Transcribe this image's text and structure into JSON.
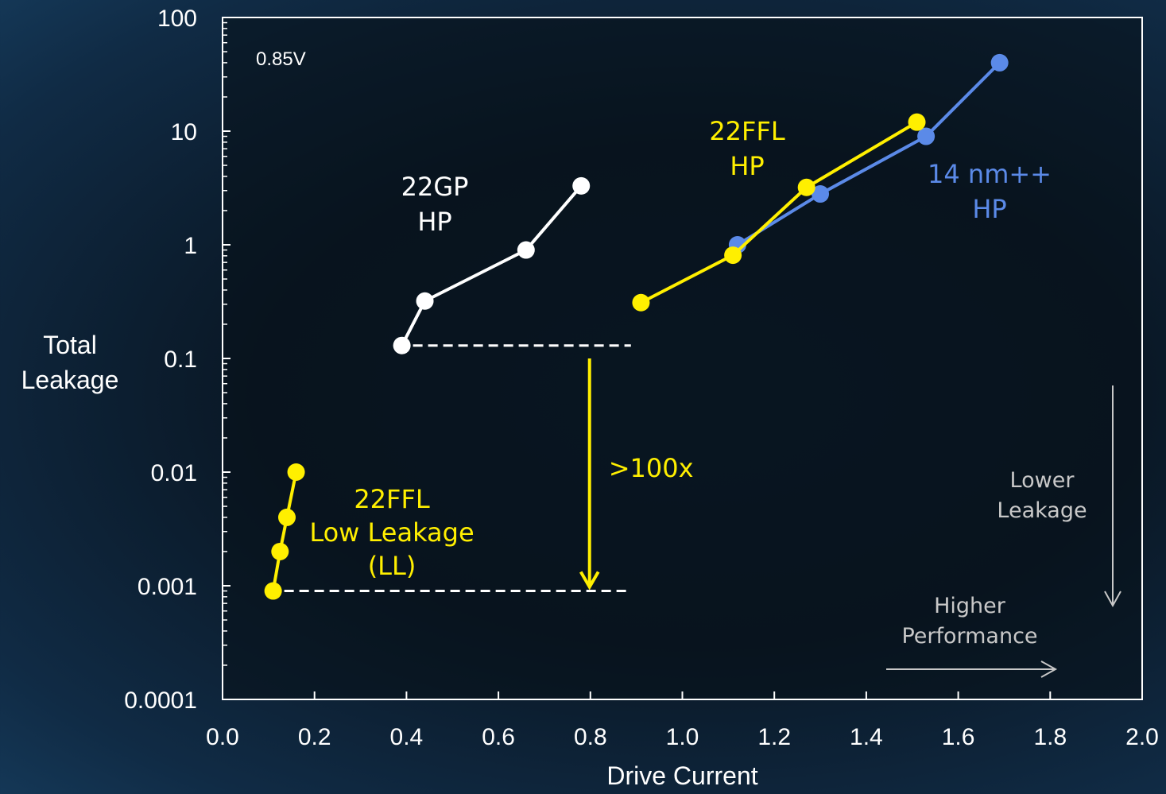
{
  "chart_data": {
    "type": "line",
    "xlabel": "Drive Current",
    "ylabel_lines": [
      "Total",
      "Leakage"
    ],
    "x_scale": "linear",
    "y_scale": "log",
    "xlim": [
      0.0,
      2.0
    ],
    "ylim": [
      0.0001,
      100
    ],
    "x_ticks": [
      "0.0",
      "0.2",
      "0.4",
      "0.6",
      "0.8",
      "1.0",
      "1.2",
      "1.4",
      "1.6",
      "1.8",
      "2.0"
    ],
    "y_ticks": [
      "100",
      "10",
      "1",
      "0.1",
      "0.01",
      "0.001",
      "0.0001"
    ],
    "grid": false,
    "legend": "none",
    "series": [
      {
        "name_lines": [
          "22GP",
          "HP"
        ],
        "color": "#ffffff",
        "x": [
          0.39,
          0.44,
          0.66,
          0.78
        ],
        "y": [
          0.13,
          0.32,
          0.9,
          3.3
        ]
      },
      {
        "name_lines": [
          "14 nm++",
          "HP"
        ],
        "color": "#5b8ae8",
        "x": [
          1.12,
          1.3,
          1.53,
          1.69
        ],
        "y": [
          1.0,
          2.8,
          9.0,
          40
        ]
      },
      {
        "name_lines": [
          "22FFL",
          "HP"
        ],
        "color": "#ffef00",
        "x": [
          0.91,
          1.11,
          1.27,
          1.51
        ],
        "y": [
          0.31,
          0.81,
          3.2,
          12
        ]
      },
      {
        "name_lines": [
          "22FFL",
          "Low Leakage",
          "(LL)"
        ],
        "color": "#ffef00",
        "x": [
          0.11,
          0.125,
          0.14,
          0.16
        ],
        "y": [
          0.0009,
          0.002,
          0.004,
          0.01
        ]
      }
    ],
    "annotations": {
      "voltage": "0.85V",
      "improvement": ">100x",
      "improvement_color": "#ffef00",
      "reference_lines": [
        {
          "x_start": 0.39,
          "x_end": 0.94,
          "y": 0.13
        },
        {
          "x_start": 0.11,
          "x_end": 0.94,
          "y": 0.0009
        }
      ],
      "improvement_arrow": {
        "x": 0.85,
        "y_from": 0.1,
        "y_to": 0.0009
      },
      "lower_leakage_lines": [
        "Lower",
        "Leakage"
      ],
      "higher_performance_lines": [
        "Higher",
        "Performance"
      ],
      "guide_color": "#c8c8c8"
    }
  }
}
